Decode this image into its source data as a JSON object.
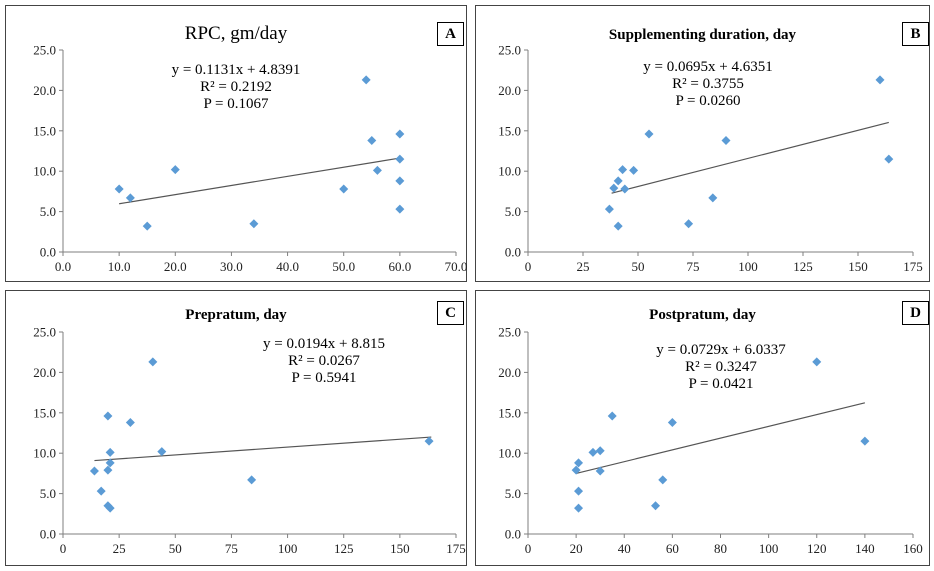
{
  "chart_data": [
    {
      "id": "A",
      "type": "scatter",
      "title": "RPC, gm/day",
      "letter": "A",
      "equation": "y = 0.1131x + 4.8391",
      "r2": "R² = 0.2192",
      "p": "P = 0.1067",
      "xlim": [
        0,
        70
      ],
      "ylim": [
        0,
        25
      ],
      "xticks": [
        "0.0",
        "10.0",
        "20.0",
        "30.0",
        "40.0",
        "50.0",
        "60.0",
        "70.0"
      ],
      "yticks": [
        "0.0",
        "5.0",
        "10.0",
        "15.0",
        "20.0",
        "25.0"
      ],
      "xtick_values": [
        0,
        10,
        20,
        30,
        40,
        50,
        60,
        70
      ],
      "ytick_values": [
        0,
        5,
        10,
        15,
        20,
        25
      ],
      "trend": {
        "slope": 0.1131,
        "intercept": 4.8391,
        "x_range": [
          10,
          60
        ]
      },
      "points": [
        {
          "x": 10,
          "y": 7.8
        },
        {
          "x": 12,
          "y": 6.7
        },
        {
          "x": 15,
          "y": 3.2
        },
        {
          "x": 20,
          "y": 10.2
        },
        {
          "x": 34,
          "y": 3.5
        },
        {
          "x": 50,
          "y": 7.8
        },
        {
          "x": 54,
          "y": 21.3
        },
        {
          "x": 55,
          "y": 13.8
        },
        {
          "x": 56,
          "y": 10.1
        },
        {
          "x": 60,
          "y": 14.6
        },
        {
          "x": 60,
          "y": 11.5
        },
        {
          "x": 60,
          "y": 8.8
        },
        {
          "x": 60,
          "y": 5.3
        }
      ]
    },
    {
      "id": "B",
      "type": "scatter",
      "title": "Supplementing duration, day",
      "letter": "B",
      "equation": "y = 0.0695x + 4.6351",
      "r2": "R² = 0.3755",
      "p": "P = 0.0260",
      "xlim": [
        0,
        175
      ],
      "ylim": [
        0,
        25
      ],
      "xticks": [
        "0",
        "25",
        "50",
        "75",
        "100",
        "125",
        "150",
        "175"
      ],
      "yticks": [
        "0.0",
        "5.0",
        "10.0",
        "15.0",
        "20.0",
        "25.0"
      ],
      "xtick_values": [
        0,
        25,
        50,
        75,
        100,
        125,
        150,
        175
      ],
      "ytick_values": [
        0,
        5,
        10,
        15,
        20,
        25
      ],
      "trend": {
        "slope": 0.0695,
        "intercept": 4.6351,
        "x_range": [
          38,
          164
        ]
      },
      "points": [
        {
          "x": 37,
          "y": 5.3
        },
        {
          "x": 39,
          "y": 7.9
        },
        {
          "x": 41,
          "y": 8.8
        },
        {
          "x": 43,
          "y": 10.2
        },
        {
          "x": 44,
          "y": 7.8
        },
        {
          "x": 41,
          "y": 3.2
        },
        {
          "x": 48,
          "y": 10.1
        },
        {
          "x": 55,
          "y": 14.6
        },
        {
          "x": 73,
          "y": 3.5
        },
        {
          "x": 84,
          "y": 6.7
        },
        {
          "x": 90,
          "y": 13.8
        },
        {
          "x": 160,
          "y": 21.3
        },
        {
          "x": 164,
          "y": 11.5
        }
      ]
    },
    {
      "id": "C",
      "type": "scatter",
      "title": "Prepratum, day",
      "letter": "C",
      "equation": "y = 0.0194x + 8.815",
      "r2": "R² = 0.0267",
      "p": "P = 0.5941",
      "xlim": [
        0,
        175
      ],
      "ylim": [
        0,
        25
      ],
      "xticks": [
        "0",
        "25",
        "50",
        "75",
        "100",
        "125",
        "150",
        "175"
      ],
      "yticks": [
        "0.0",
        "5.0",
        "10.0",
        "15.0",
        "20.0",
        "25.0"
      ],
      "xtick_values": [
        0,
        25,
        50,
        75,
        100,
        125,
        150,
        175
      ],
      "ytick_values": [
        0,
        5,
        10,
        15,
        20,
        25
      ],
      "trend": {
        "slope": 0.0194,
        "intercept": 8.815,
        "x_range": [
          14,
          164
        ]
      },
      "points": [
        {
          "x": 14,
          "y": 7.8
        },
        {
          "x": 17,
          "y": 5.3
        },
        {
          "x": 20,
          "y": 3.5
        },
        {
          "x": 21,
          "y": 3.2
        },
        {
          "x": 20,
          "y": 7.9
        },
        {
          "x": 21,
          "y": 8.8
        },
        {
          "x": 21,
          "y": 10.1
        },
        {
          "x": 20,
          "y": 14.6
        },
        {
          "x": 30,
          "y": 13.8
        },
        {
          "x": 40,
          "y": 21.3
        },
        {
          "x": 44,
          "y": 10.2
        },
        {
          "x": 84,
          "y": 6.7
        },
        {
          "x": 163,
          "y": 11.5
        }
      ]
    },
    {
      "id": "D",
      "type": "scatter",
      "title": "Postpratum, day",
      "letter": "D",
      "equation": "y = 0.0729x + 6.0337",
      "r2": "R² = 0.3247",
      "p": "P = 0.0421",
      "xlim": [
        0,
        160
      ],
      "ylim": [
        0,
        25
      ],
      "xticks": [
        "0",
        "20",
        "40",
        "60",
        "80",
        "100",
        "120",
        "140",
        "160"
      ],
      "yticks": [
        "0.0",
        "5.0",
        "10.0",
        "15.0",
        "20.0",
        "25.0"
      ],
      "xtick_values": [
        0,
        20,
        40,
        60,
        80,
        100,
        120,
        140,
        160
      ],
      "ytick_values": [
        0,
        5,
        10,
        15,
        20,
        25
      ],
      "trend": {
        "slope": 0.0729,
        "intercept": 6.0337,
        "x_range": [
          20,
          140
        ]
      },
      "points": [
        {
          "x": 20,
          "y": 7.9
        },
        {
          "x": 21,
          "y": 8.8
        },
        {
          "x": 21,
          "y": 5.3
        },
        {
          "x": 21,
          "y": 3.2
        },
        {
          "x": 27,
          "y": 10.1
        },
        {
          "x": 30,
          "y": 10.3
        },
        {
          "x": 30,
          "y": 7.8
        },
        {
          "x": 35,
          "y": 14.6
        },
        {
          "x": 53,
          "y": 3.5
        },
        {
          "x": 56,
          "y": 6.7
        },
        {
          "x": 60,
          "y": 13.8
        },
        {
          "x": 120,
          "y": 21.3
        },
        {
          "x": 140,
          "y": 11.5
        }
      ]
    }
  ],
  "style": {
    "marker_color": "#5b9bd5",
    "trend_color": "#555555",
    "axis_color": "#7f7f7f"
  }
}
